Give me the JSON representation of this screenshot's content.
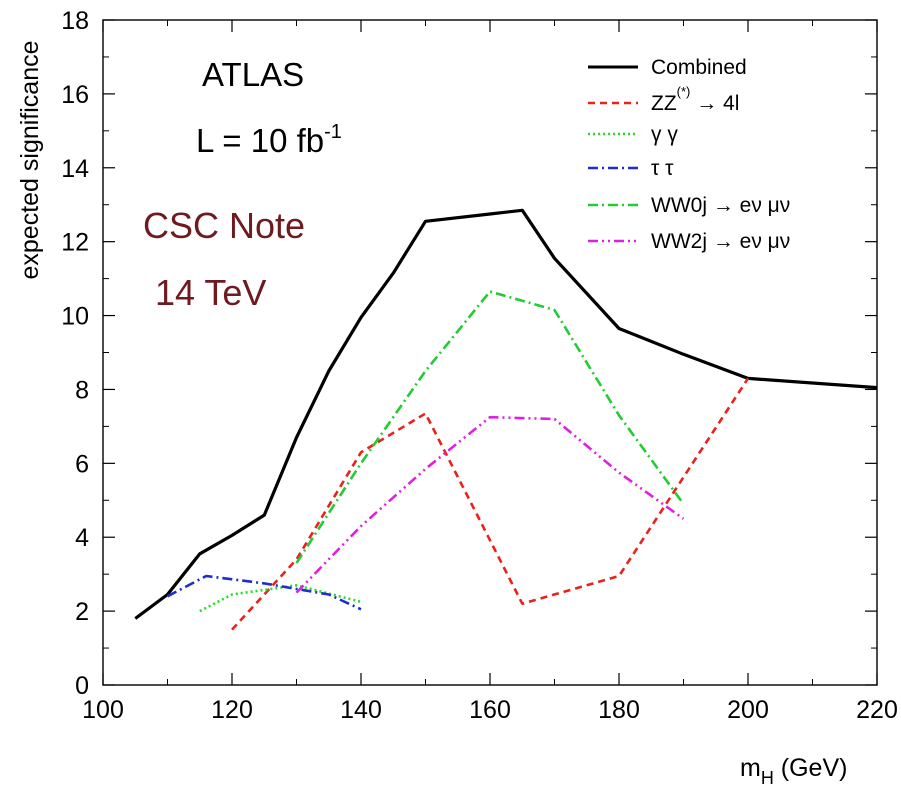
{
  "chart_data": {
    "type": "line",
    "xlabel_main": "m",
    "xlabel_sub": "H",
    "xlabel_unit": " (GeV)",
    "ylabel": "expected significance",
    "xlim": [
      100,
      220
    ],
    "ylim": [
      0,
      18
    ],
    "xticks": [
      100,
      120,
      140,
      160,
      180,
      200,
      220
    ],
    "yticks": [
      0,
      2,
      4,
      6,
      8,
      10,
      12,
      14,
      16,
      18
    ],
    "grid": false,
    "legend_position": "top-right",
    "annotations": {
      "experiment": "ATLAS",
      "lumi_main": "L = 10 fb",
      "lumi_sup": "-1",
      "note": "CSC Note",
      "energy": "14 TeV"
    },
    "series": [
      {
        "name": "Combined",
        "color": "#000000",
        "style": "solid",
        "x": [
          105,
          110,
          115,
          120,
          125,
          130,
          135,
          140,
          145,
          150,
          160,
          165,
          170,
          180,
          190,
          200,
          220
        ],
        "y": [
          1.8,
          2.45,
          3.55,
          4.05,
          4.6,
          6.7,
          8.5,
          9.95,
          11.15,
          12.55,
          12.75,
          12.85,
          11.55,
          9.65,
          8.95,
          8.3,
          8.05
        ]
      },
      {
        "name": "ZZ",
        "name_sup": "(*)",
        "name_tail": " → 4l",
        "color": "#e8221c",
        "style": "dashed",
        "x": [
          120,
          130,
          140,
          150,
          165,
          180,
          200
        ],
        "y": [
          1.5,
          3.4,
          6.3,
          7.35,
          2.2,
          2.95,
          8.3
        ]
      },
      {
        "name": "γ γ",
        "color": "#22dd22",
        "style": "dotted",
        "x": [
          115,
          120,
          130,
          140
        ],
        "y": [
          2.0,
          2.45,
          2.7,
          2.25
        ]
      },
      {
        "name": "τ τ",
        "color": "#1f2cd0",
        "style": "dashdot",
        "x": [
          110,
          116,
          125,
          135,
          140
        ],
        "y": [
          2.4,
          2.95,
          2.75,
          2.45,
          2.05
        ]
      },
      {
        "name": "WW0j → eν μν",
        "color": "#22cc33",
        "style": "dashdot",
        "x": [
          130,
          140,
          150,
          160,
          170,
          180,
          190
        ],
        "y": [
          3.3,
          6.0,
          8.5,
          10.65,
          10.15,
          7.3,
          4.9
        ]
      },
      {
        "name": "WW2j → eν μν",
        "color": "#e020e0",
        "style": "dashdotdot",
        "x": [
          130,
          140,
          150,
          160,
          170,
          180,
          190
        ],
        "y": [
          2.5,
          4.3,
          5.85,
          7.25,
          7.2,
          5.75,
          4.5
        ]
      }
    ]
  }
}
